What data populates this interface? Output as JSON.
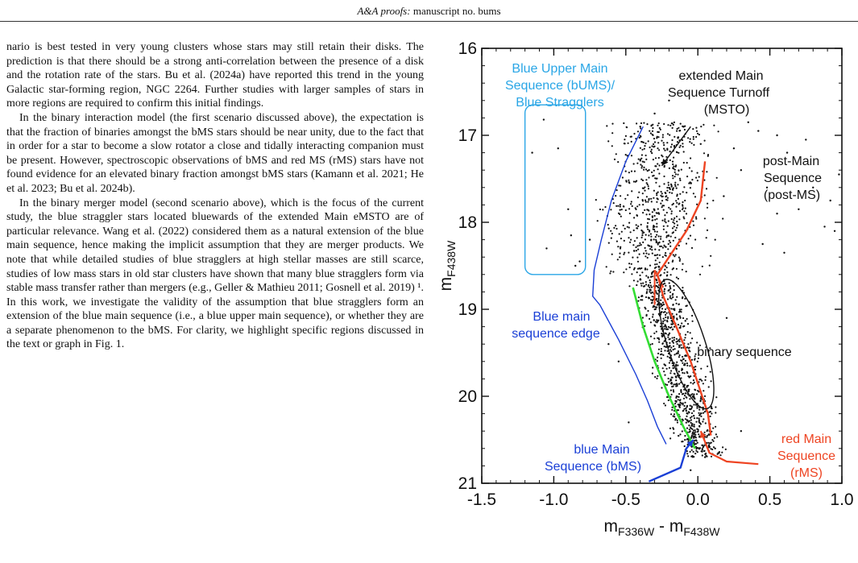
{
  "header": {
    "journal": "A&A proofs:",
    "manuscript": "manuscript no. bums"
  },
  "text": {
    "p1": "nario is best tested in very young clusters whose stars may still retain their disks. The prediction is that there should be a strong anti-correlation between the presence of a disk and the rotation rate of the stars. Bu et al. (2024a) have reported this trend in the young Galactic star-forming region, NGC 2264. Further studies with larger samples of stars in more regions are required to confirm this initial findings.",
    "p2": "In the binary interaction model (the first scenario discussed above), the expectation is that the fraction of binaries amongst the bMS stars should be near unity, due to the fact that in order for a star to become a slow rotator a close and tidally interacting companion must be present. However, spectroscopic observations of bMS and red MS (rMS) stars have not found evidence for an elevated binary fraction amongst bMS stars (Kamann et al. 2021; He et al. 2023; Bu et al. 2024b).",
    "p3": "In the binary merger model (second scenario above), which is the focus of the current study, the blue straggler stars located bluewards of the extended Main eMSTO are of particular relevance. Wang et al. (2022) considered them as a natural extension of the blue main sequence, hence making the implicit assumption that they are merger products. We note that while detailed studies of blue stragglers at high stellar masses are still scarce, studies of low mass stars in old star clusters have shown that many blue stragglers form via stable mass transfer rather than mergers (e.g., Geller & Mathieu 2011; Gosnell et al. 2019) ¹. In this work, we investigate the validity of the assumption that blue stragglers form an extension of the blue main sequence (i.e., a blue upper main sequence), or whether they are a separate phenomenon to the bMS. For clarity, we highlight specific regions discussed in the text or graph in Fig. 1."
  },
  "chart_data": {
    "type": "scatter",
    "title": "",
    "xlabel": "m_F336W - m_F438W",
    "ylabel": "m_F438W",
    "xlim": [
      -1.5,
      1.0
    ],
    "ylim": [
      21,
      16
    ],
    "y_inverted": true,
    "x_ticks": [
      "-1.5",
      "-1.0",
      "-0.5",
      "0.0",
      "0.5",
      "1.0"
    ],
    "y_ticks": [
      "16",
      "17",
      "18",
      "19",
      "20",
      "21"
    ],
    "annotations": {
      "bums_line1": "Blue Upper Main",
      "bums_line2": "Sequence (bUMS)/",
      "bums_line3": "Blue Stragglers",
      "msto_line1": "extended Main",
      "msto_line2": "Sequence Turnoff",
      "msto_line3": "(MSTO)",
      "postms_line1": "post-Main",
      "postms_line2": "Sequence",
      "postms_line3": "(post-MS)",
      "edge_line1": "Blue main",
      "edge_line2": "sequence edge",
      "binary": "binary sequence",
      "bms_line1": "blue Main",
      "bms_line2": "Sequence (bMS)",
      "rms_line1": "red Main",
      "rms_line2": "Sequence",
      "rms_line3": "(rMS)"
    },
    "blue_stragglers": [
      [
        -1.07,
        16.82
      ],
      [
        -1.15,
        17.2
      ],
      [
        -0.97,
        17.15
      ],
      [
        -0.9,
        17.85
      ],
      [
        -0.88,
        18.15
      ],
      [
        -1.05,
        18.3
      ],
      [
        -0.85,
        18.5
      ],
      [
        -0.82,
        18.45
      ],
      [
        -0.75,
        18.2
      ]
    ],
    "post_ms_stars": [
      [
        0.35,
        16.85
      ],
      [
        0.42,
        16.95
      ],
      [
        0.55,
        17.0
      ],
      [
        0.62,
        17.2
      ],
      [
        0.75,
        17.05
      ],
      [
        0.48,
        17.6
      ],
      [
        0.8,
        17.6
      ],
      [
        0.92,
        17.75
      ],
      [
        0.55,
        17.9
      ],
      [
        0.88,
        18.05
      ],
      [
        0.3,
        17.4
      ],
      [
        0.7,
        17.85
      ],
      [
        0.95,
        18.1
      ],
      [
        0.45,
        18.25
      ],
      [
        0.6,
        18.35
      ],
      [
        0.98,
        17.45
      ],
      [
        0.25,
        17.15
      ],
      [
        0.18,
        17.7
      ]
    ],
    "scattered_stars": [
      [
        -0.62,
        19.4
      ],
      [
        -0.55,
        19.6
      ],
      [
        -0.48,
        20.3
      ],
      [
        0.15,
        19.5
      ],
      [
        0.2,
        19.1
      ],
      [
        0.12,
        20.6
      ],
      [
        0.05,
        20.7
      ],
      [
        -0.05,
        20.85
      ],
      [
        -0.4,
        16.9
      ],
      [
        -0.3,
        16.75
      ],
      [
        -0.2,
        16.6
      ],
      [
        -0.1,
        16.9
      ],
      [
        0.02,
        17.1
      ],
      [
        0.3,
        20.4
      ]
    ],
    "lines": {
      "blue_edge": [
        [
          -0.38,
          16.9
        ],
        [
          -0.5,
          17.3
        ],
        [
          -0.6,
          17.75
        ],
        [
          -0.67,
          18.2
        ],
        [
          -0.72,
          18.55
        ],
        [
          -0.73,
          18.85
        ],
        [
          -0.68,
          18.95
        ],
        [
          -0.55,
          19.35
        ],
        [
          -0.43,
          19.75
        ],
        [
          -0.35,
          20.05
        ],
        [
          -0.28,
          20.35
        ],
        [
          -0.22,
          20.55
        ]
      ],
      "red_ms": [
        [
          0.05,
          17.3
        ],
        [
          0.02,
          17.75
        ],
        [
          -0.08,
          18.1
        ],
        [
          -0.2,
          18.4
        ],
        [
          -0.28,
          18.6
        ],
        [
          -0.24,
          18.85
        ],
        [
          -0.15,
          19.2
        ],
        [
          -0.05,
          19.6
        ],
        [
          0.02,
          19.95
        ],
        [
          0.07,
          20.2
        ],
        [
          0.09,
          20.45
        ]
      ],
      "red_ms_hook": [
        [
          -0.24,
          18.75
        ],
        [
          -0.3,
          18.55
        ],
        [
          -0.3,
          18.95
        ]
      ],
      "green_bms": [
        [
          -0.45,
          18.75
        ],
        [
          -0.38,
          19.2
        ],
        [
          -0.3,
          19.6
        ],
        [
          -0.2,
          20.0
        ],
        [
          -0.1,
          20.35
        ],
        [
          -0.02,
          20.6
        ]
      ],
      "blue_bms_arrow": [
        [
          -0.34,
          20.98
        ],
        [
          -0.12,
          20.82
        ],
        [
          -0.08,
          20.6
        ],
        [
          -0.03,
          20.5
        ]
      ],
      "red_rms_arrow": [
        [
          0.42,
          20.78
        ],
        [
          0.2,
          20.75
        ],
        [
          0.08,
          20.65
        ],
        [
          0.02,
          20.4
        ]
      ],
      "msto_arrow": [
        [
          -0.05,
          16.9
        ],
        [
          -0.25,
          17.35
        ]
      ]
    },
    "bums_box": {
      "x0": -1.2,
      "x1": -0.78,
      "y0": 16.65,
      "y1": 18.6
    },
    "binary_ellipse": {
      "cx": -0.08,
      "cy": 19.4,
      "rx_data": 0.13,
      "ry_data": 0.78,
      "rotate_deg": -18
    },
    "colors": {
      "blue_text": "#1a3fd6",
      "cyan": "#2aa6e6",
      "red": "#ee4422",
      "green": "#33dd33",
      "black": "#111111"
    }
  }
}
